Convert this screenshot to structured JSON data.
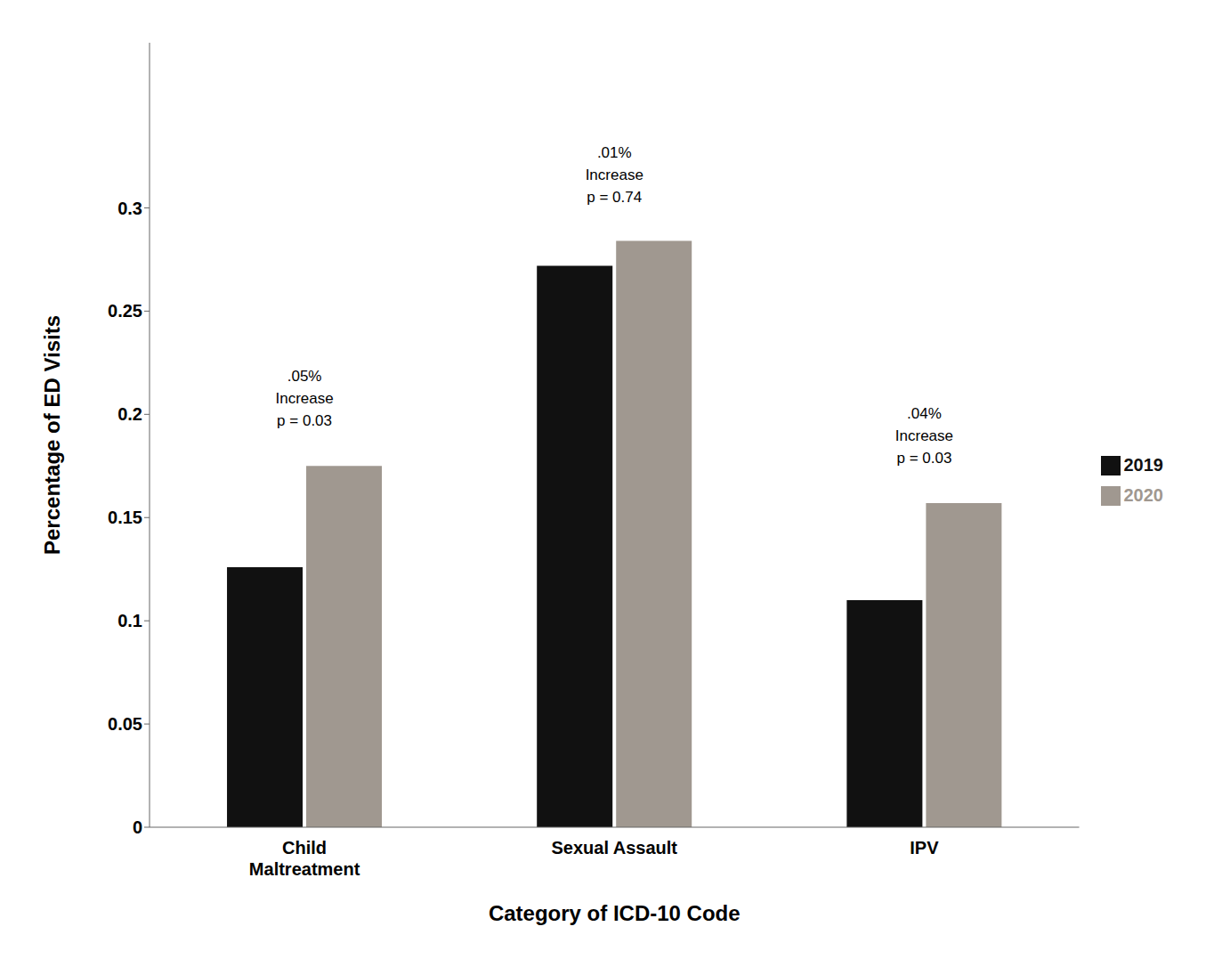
{
  "chart_data": {
    "type": "bar",
    "categories": [
      "Child\nMaltreatment",
      "Sexual Assault",
      "IPV"
    ],
    "series": [
      {
        "name": "2019",
        "color": "#111111",
        "values": [
          0.126,
          0.272,
          0.11
        ]
      },
      {
        "name": "2020",
        "color": "#a09890",
        "values": [
          0.175,
          0.284,
          0.157
        ]
      }
    ],
    "xlabel": "Category of ICD-10 Code",
    "ylabel": "Percentage of ED Visits",
    "ylim": [
      0,
      0.38
    ],
    "yticks": [
      0,
      0.05,
      0.1,
      0.15,
      0.2,
      0.25,
      0.3
    ],
    "annotations": [
      {
        "text": ".05%\nIncrease\np = 0.03",
        "x": "Child\nMaltreatment",
        "y": 0.192
      },
      {
        "text": ".01%\nIncrease\np = 0.74",
        "x": "Sexual Assault",
        "y": 0.3
      },
      {
        "text": ".04%\nIncrease\np = 0.03",
        "x": "IPV",
        "y": 0.174
      }
    ],
    "legend": "right",
    "grid": false
  }
}
